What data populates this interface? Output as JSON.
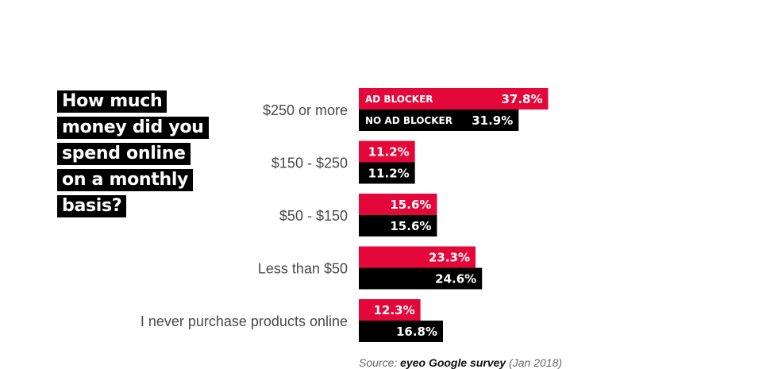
{
  "question": {
    "lines": [
      "How much",
      "money did you",
      "spend online",
      "on a monthly",
      "basis?"
    ]
  },
  "colors": {
    "ad_blocker": "#e4083a",
    "no_ad_blocker": "#000000"
  },
  "chart_data": {
    "type": "bar",
    "orientation": "horizontal",
    "categories": [
      "$250 or more",
      "$150 - $250",
      "$50 - $150",
      "Less than $50",
      "I never purchase products online"
    ],
    "series": [
      {
        "name": "AD BLOCKER",
        "values": [
          37.8,
          11.2,
          15.6,
          23.3,
          12.3
        ]
      },
      {
        "name": "NO AD BLOCKER",
        "values": [
          31.9,
          11.2,
          15.6,
          24.6,
          16.8
        ]
      }
    ],
    "value_suffix": "%",
    "title": "",
    "xlabel": "",
    "ylabel": "",
    "grid": false,
    "legend": "inline labels on first bars"
  },
  "source": {
    "prefix": "Source:",
    "name": "eyeo Google survey",
    "date": "(Jan 2018)"
  }
}
